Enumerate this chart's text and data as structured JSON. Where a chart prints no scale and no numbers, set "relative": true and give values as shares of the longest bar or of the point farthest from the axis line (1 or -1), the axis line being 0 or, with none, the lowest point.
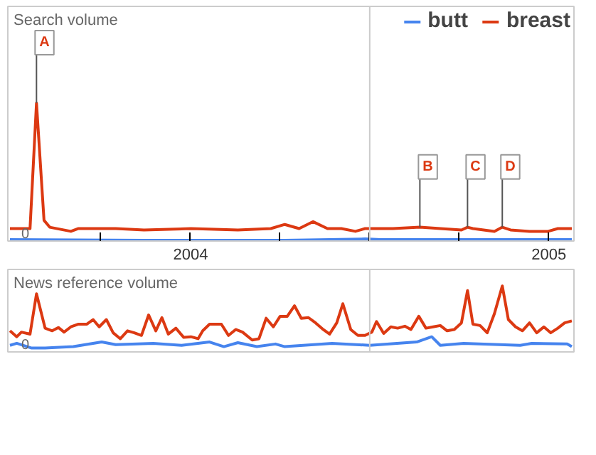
{
  "chart_data": [
    {
      "type": "line",
      "title": "Search volume",
      "relative": true,
      "legend": "top right",
      "xlim": [
        2003.49,
        2005.07
      ],
      "xticks": [
        {
          "value": 2003.75,
          "label": null
        },
        2004,
        {
          "value": 2004.25,
          "label": null
        },
        {
          "value": 2004.5,
          "label": null
        },
        {
          "value": 2004.75,
          "label": null
        },
        2005
      ],
      "ref_lines": [
        {
          "axis": "x",
          "value": 2004.5,
          "color": "#cccccc"
        }
      ],
      "series": [
        {
          "name": "butt",
          "color": "#4684ee",
          "x": [
            2003.496,
            2003.87,
            2004.263,
            2004.487,
            2004.53,
            2005.064
          ],
          "values": [
            0.01,
            0.005,
            0.005,
            0.015,
            0.01,
            0.01
          ]
        },
        {
          "name": "breast",
          "color": "#dc3912",
          "x": [
            2003.496,
            2003.552,
            2003.57,
            2003.591,
            2003.607,
            2003.666,
            2003.686,
            2003.791,
            2003.87,
            2004.001,
            2004.132,
            2004.224,
            2004.263,
            2004.303,
            2004.342,
            2004.382,
            2004.421,
            2004.46,
            2004.487,
            2004.565,
            2004.64,
            2004.697,
            2004.756,
            2004.773,
            2004.788,
            2004.848,
            2004.87,
            2004.893,
            2004.946,
            2004.998,
            2005.025,
            2005.064
          ],
          "values": [
            0.09,
            0.09,
            1,
            0.15,
            0.1,
            0.07,
            0.09,
            0.09,
            0.08,
            0.09,
            0.08,
            0.09,
            0.12,
            0.09,
            0.14,
            0.09,
            0.09,
            0.07,
            0.09,
            0.09,
            0.1,
            0.09,
            0.08,
            0.1,
            0.09,
            0.07,
            0.1,
            0.08,
            0.07,
            0.07,
            0.09,
            0.09
          ]
        }
      ],
      "annotations": [
        {
          "text": "0",
          "x": 2003.52,
          "y": 0
        },
        {
          "text": "A",
          "x": 2003.57,
          "y": 1
        },
        {
          "text": "B",
          "x": 2004.64,
          "y": 0.1
        },
        {
          "text": "C",
          "x": 2004.773,
          "y": 0.1
        },
        {
          "text": "D",
          "x": 2004.87,
          "y": 0.1
        }
      ]
    },
    {
      "type": "line",
      "title": "News reference volume",
      "relative": true,
      "tick_labels": false,
      "xlim": [
        2003.49,
        2005.07
      ],
      "ref_lines": [
        {
          "axis": "x",
          "value": 2004.5,
          "color": "#cccccc"
        }
      ],
      "series": [
        {
          "color": "#4684ee",
          "x": [
            2003.496,
            2003.515,
            2003.555,
            2003.594,
            2003.673,
            2003.752,
            2003.791,
            2003.896,
            2003.975,
            2004.053,
            2004.093,
            2004.132,
            2004.185,
            2004.237,
            2004.263,
            2004.395,
            2004.5,
            2004.631,
            2004.673,
            2004.697,
            2004.762,
            2004.92,
            2004.952,
            2005.051,
            2005.064
          ],
          "values": [
            0.1,
            0.13,
            0.06,
            0.06,
            0.08,
            0.15,
            0.11,
            0.13,
            0.1,
            0.15,
            0.08,
            0.14,
            0.08,
            0.12,
            0.08,
            0.13,
            0.1,
            0.15,
            0.23,
            0.1,
            0.13,
            0.1,
            0.13,
            0.12,
            0.08
          ]
        },
        {
          "color": "#dc3912",
          "x": [
            2003.496,
            2003.515,
            2003.528,
            2003.552,
            2003.57,
            2003.594,
            2003.614,
            2003.631,
            2003.647,
            2003.666,
            2003.686,
            2003.71,
            2003.728,
            2003.745,
            2003.765,
            2003.784,
            2003.804,
            2003.824,
            2003.843,
            2003.863,
            2003.883,
            2003.903,
            2003.92,
            2003.938,
            2003.959,
            2003.981,
            2004.001,
            2004.021,
            2004.034,
            2004.053,
            2004.086,
            2004.106,
            2004.126,
            2004.145,
            2004.172,
            2004.191,
            2004.211,
            2004.231,
            2004.25,
            2004.27,
            2004.29,
            2004.309,
            2004.329,
            2004.349,
            2004.368,
            2004.388,
            2004.408,
            2004.425,
            2004.447,
            2004.467,
            2004.487,
            2004.506,
            2004.519,
            2004.539,
            2004.559,
            2004.578,
            2004.598,
            2004.615,
            2004.637,
            2004.657,
            2004.677,
            2004.697,
            2004.716,
            2004.736,
            2004.756,
            2004.773,
            2004.788,
            2004.808,
            2004.828,
            2004.848,
            2004.87,
            2004.887,
            2004.907,
            2004.926,
            2004.946,
            2004.966,
            2004.986,
            2005.005,
            2005.025,
            2005.044,
            2005.064
          ],
          "values": [
            0.32,
            0.23,
            0.3,
            0.27,
            0.88,
            0.36,
            0.32,
            0.37,
            0.3,
            0.38,
            0.42,
            0.42,
            0.49,
            0.38,
            0.49,
            0.29,
            0.2,
            0.32,
            0.29,
            0.25,
            0.56,
            0.32,
            0.52,
            0.27,
            0.36,
            0.22,
            0.23,
            0.2,
            0.32,
            0.42,
            0.42,
            0.25,
            0.34,
            0.3,
            0.18,
            0.2,
            0.51,
            0.38,
            0.54,
            0.54,
            0.7,
            0.51,
            0.52,
            0.44,
            0.35,
            0.27,
            0.44,
            0.73,
            0.34,
            0.25,
            0.25,
            0.3,
            0.46,
            0.28,
            0.38,
            0.36,
            0.39,
            0.34,
            0.54,
            0.36,
            0.38,
            0.4,
            0.32,
            0.34,
            0.44,
            0.93,
            0.42,
            0.4,
            0.29,
            0.58,
            1,
            0.49,
            0.38,
            0.32,
            0.44,
            0.29,
            0.38,
            0.29,
            0.36,
            0.44,
            0.47
          ]
        }
      ],
      "annotations": [
        {
          "text": "0",
          "x": 2003.52,
          "y": 0
        }
      ]
    }
  ]
}
